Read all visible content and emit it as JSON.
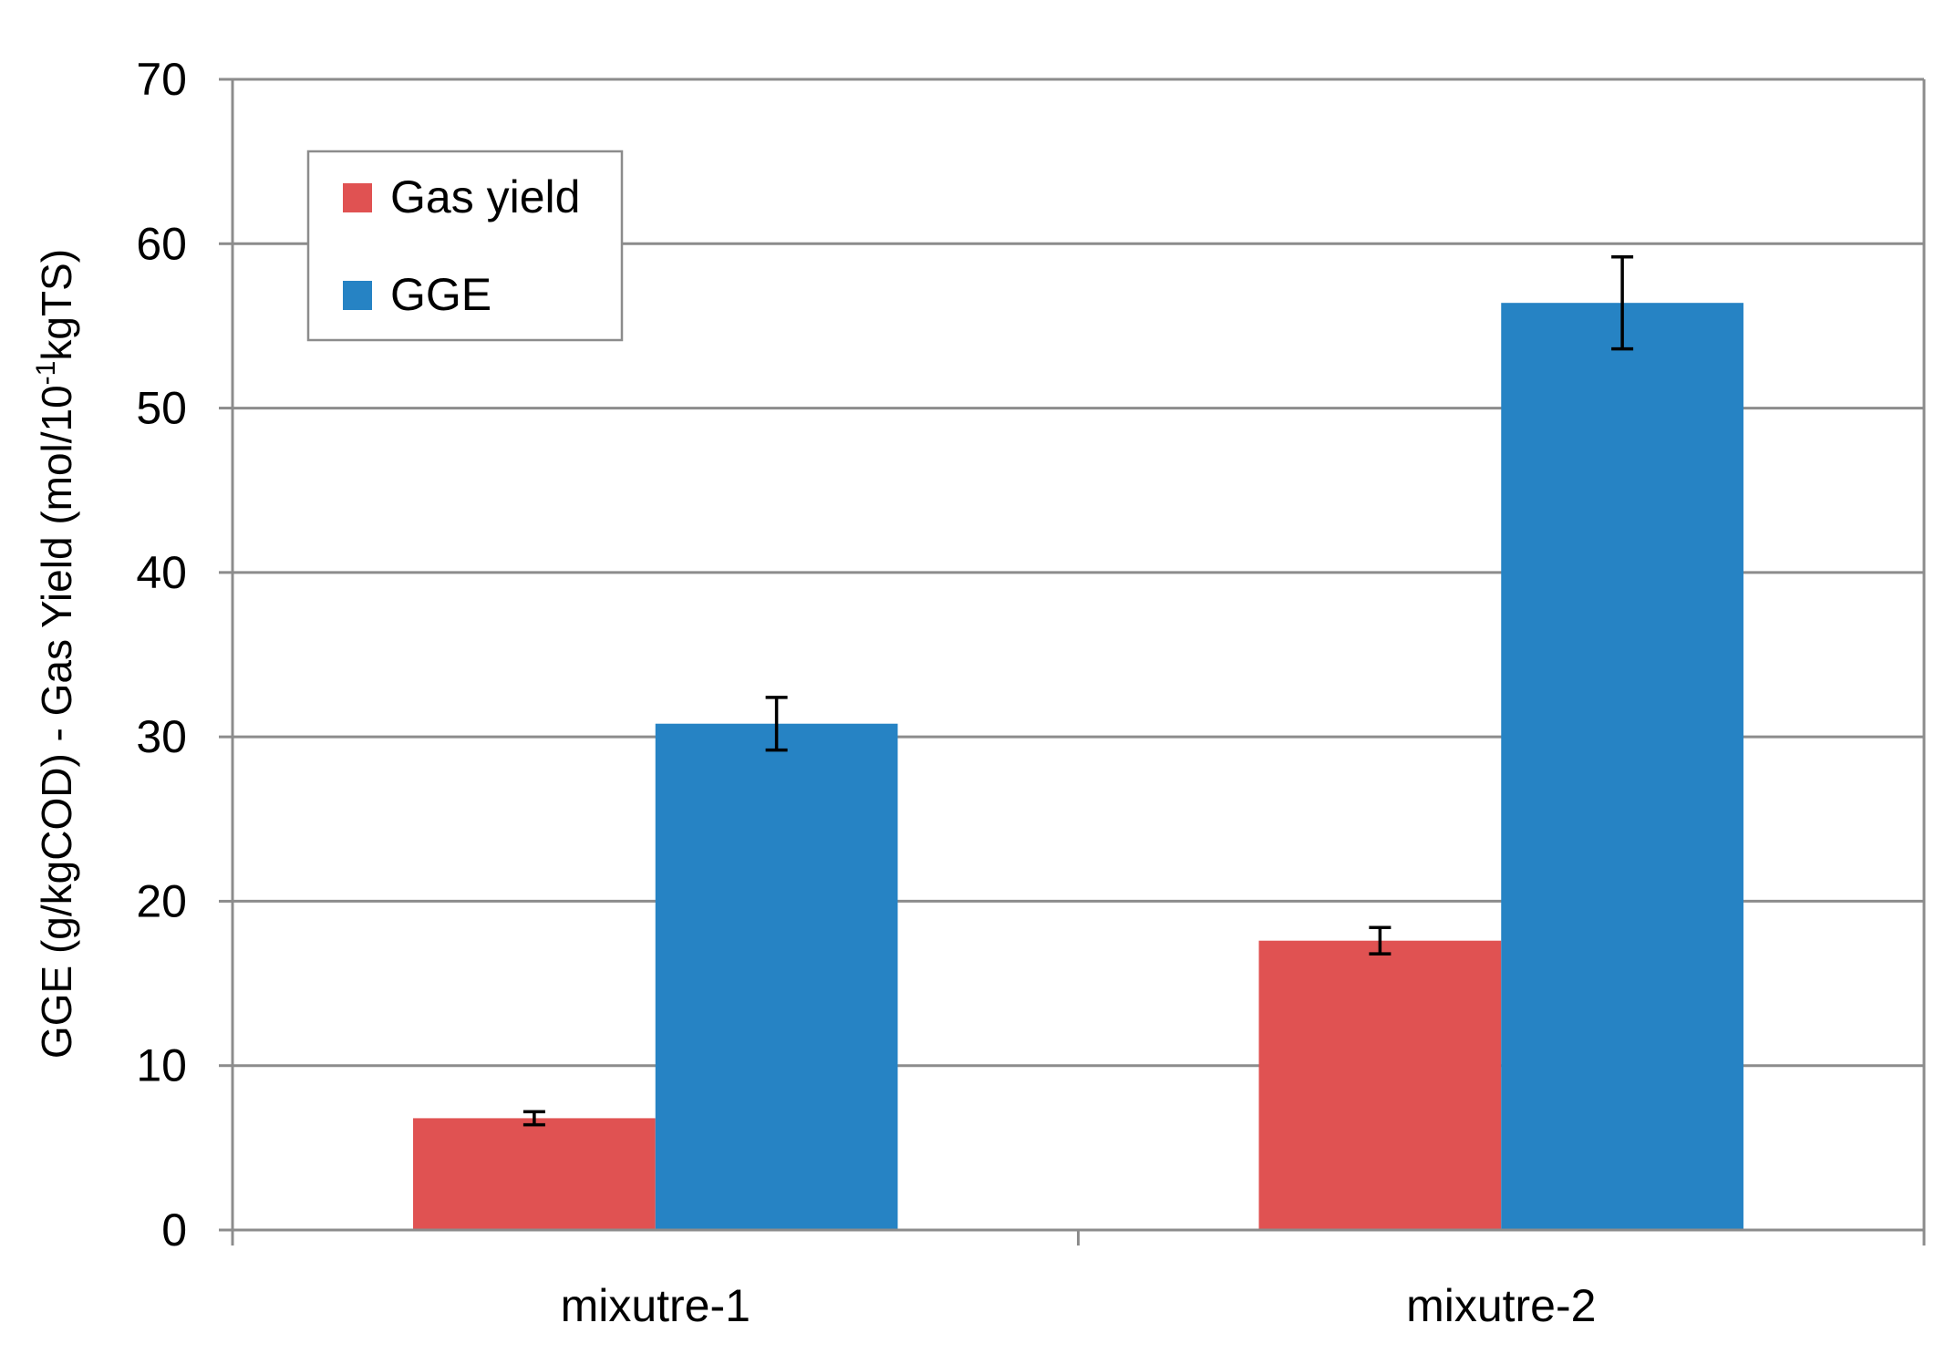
{
  "chart_data": {
    "type": "bar",
    "title": "",
    "xlabel": "",
    "ylabel": {
      "prefix": "GGE (g/kgCOD) - Gas Yield (mol/10",
      "superscript": "-1",
      "suffix": "kgTS)"
    },
    "categories": [
      "mixutre-1",
      "mixutre-2"
    ],
    "ylim": [
      0,
      70
    ],
    "yticks": [
      0,
      10,
      20,
      30,
      40,
      50,
      60,
      70
    ],
    "grid": true,
    "legend_position": "top-left",
    "series": [
      {
        "name": "Gas yield",
        "color": "#E05252",
        "values": [
          6.8,
          17.6
        ],
        "errors": [
          0.4,
          0.8
        ]
      },
      {
        "name": "GGE",
        "color": "#2683C4",
        "values": [
          30.8,
          56.4
        ],
        "errors": [
          1.6,
          2.8
        ]
      }
    ]
  }
}
